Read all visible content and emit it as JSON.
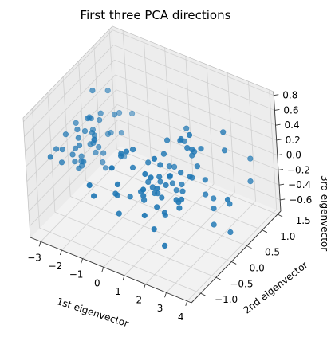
{
  "chart_data": {
    "type": "scatter",
    "projection": "3d",
    "title": "First three PCA directions",
    "xlabel": "1st eigenvector",
    "ylabel": "2nd eigenvector",
    "zlabel": "3rd eigenvector",
    "xlim": [
      -3.5,
      4.2
    ],
    "ylim": [
      -1.3,
      1.6
    ],
    "zlim": [
      -0.75,
      0.85
    ],
    "xticks": [
      -3,
      -2,
      -1,
      0,
      1,
      2,
      3,
      4
    ],
    "yticks": [
      -1.0,
      -0.5,
      0.0,
      0.5,
      1.0,
      1.5
    ],
    "zticks": [
      -0.6,
      -0.4,
      -0.2,
      0.0,
      0.2,
      0.4,
      0.6,
      0.8
    ],
    "xtick_labels": [
      "−3",
      "−2",
      "−1",
      "0",
      "1",
      "2",
      "3",
      "4"
    ],
    "ytick_labels": [
      "−1.0",
      "−0.5",
      "0.0",
      "0.5",
      "1.0",
      "1.5"
    ],
    "ztick_labels": [
      "−0.6",
      "−0.4",
      "−0.2",
      "0.0",
      "0.2",
      "0.4",
      "0.6",
      "0.8"
    ],
    "grid": true,
    "marker_color": "#1f77b4",
    "points": [
      [
        -2.68,
        0.32,
        -0.03
      ],
      [
        -2.71,
        -0.18,
        -0.21
      ],
      [
        -2.89,
        -0.14,
        0.02
      ],
      [
        -2.75,
        -0.32,
        0.03
      ],
      [
        -2.73,
        0.33,
        0.09
      ],
      [
        -2.28,
        0.74,
        0.17
      ],
      [
        -2.82,
        -0.09,
        0.26
      ],
      [
        -2.63,
        0.16,
        -0.02
      ],
      [
        -2.89,
        -0.58,
        0.02
      ],
      [
        -2.67,
        -0.11,
        -0.2
      ],
      [
        -2.51,
        0.65,
        -0.08
      ],
      [
        -2.61,
        0.01,
        0.22
      ],
      [
        -2.79,
        -0.24,
        -0.1
      ],
      [
        -3.23,
        -0.51,
        0.13
      ],
      [
        -2.64,
        1.18,
        -0.62
      ],
      [
        -2.38,
        1.34,
        -0.08
      ],
      [
        -2.62,
        0.81,
        -0.14
      ],
      [
        -2.65,
        0.31,
        -0.03
      ],
      [
        -2.2,
        0.87,
        -0.12
      ],
      [
        -2.59,
        0.51,
        0.25
      ],
      [
        -2.31,
        0.39,
        -0.4
      ],
      [
        -2.54,
        0.43,
        0.2
      ],
      [
        -3.22,
        0.13,
        0.21
      ],
      [
        -2.3,
        0.1,
        0.16
      ],
      [
        -2.36,
        -0.04,
        0.44
      ],
      [
        -2.51,
        -0.15,
        -0.11
      ],
      [
        -2.47,
        0.14,
        0.16
      ],
      [
        -2.56,
        0.37,
        -0.14
      ],
      [
        -2.64,
        0.32,
        -0.2
      ],
      [
        -2.63,
        -0.19,
        0.21
      ],
      [
        -2.59,
        -0.2,
        0.12
      ],
      [
        -2.41,
        0.41,
        -0.22
      ],
      [
        -2.65,
        0.81,
        0.42
      ],
      [
        -2.6,
        1.09,
        0.01
      ],
      [
        -2.68,
        -0.11,
        -0.14
      ],
      [
        -2.87,
        0.02,
        -0.15
      ],
      [
        -2.63,
        0.51,
        -0.41
      ],
      [
        -2.8,
        0.34,
        0.23
      ],
      [
        -2.98,
        -0.48,
        0.14
      ],
      [
        -2.59,
        0.23,
        -0.03
      ],
      [
        -2.77,
        0.27,
        0.28
      ],
      [
        -2.85,
        -0.94,
        0.25
      ],
      [
        -3.0,
        -0.34,
        0.28
      ],
      [
        -2.41,
        0.19,
        0.71
      ],
      [
        1.28,
        0.69,
        0.41
      ],
      [
        0.93,
        0.32,
        0.02
      ],
      [
        1.46,
        0.5,
        0.34
      ],
      [
        0.18,
        -0.83,
        0.18
      ],
      [
        1.09,
        0.07,
        0.31
      ],
      [
        0.64,
        -0.42,
        -0.04
      ],
      [
        1.1,
        0.28,
        -0.17
      ],
      [
        -0.75,
        -1.0,
        -0.01
      ],
      [
        1.04,
        0.23,
        0.42
      ],
      [
        -0.01,
        -0.72,
        -0.28
      ],
      [
        -0.51,
        -1.26,
        0.27
      ],
      [
        0.51,
        -0.1,
        -0.06
      ],
      [
        0.26,
        -0.55,
        0.51
      ],
      [
        0.98,
        -0.12,
        -0.15
      ],
      [
        -0.17,
        -0.25,
        -0.27
      ],
      [
        0.93,
        0.47,
        -0.05
      ],
      [
        0.66,
        -0.35,
        -0.18
      ],
      [
        0.23,
        -0.33,
        0.44
      ],
      [
        0.94,
        -0.54,
        -0.01
      ],
      [
        0.04,
        -0.58,
        0.47
      ],
      [
        1.12,
        -0.08,
        0.23
      ],
      [
        0.36,
        0.03,
        0.13
      ],
      [
        1.3,
        -0.33,
        0.04
      ],
      [
        0.92,
        -0.18,
        -0.13
      ],
      [
        0.71,
        0.15,
        -0.14
      ],
      [
        0.9,
        0.33,
        -0.13
      ],
      [
        1.33,
        0.24,
        -0.22
      ],
      [
        1.56,
        0.27,
        -0.13
      ],
      [
        0.81,
        -0.16,
        -0.07
      ],
      [
        -0.31,
        -0.37,
        0.31
      ],
      [
        -0.07,
        -0.7,
        -0.05
      ],
      [
        -0.19,
        -0.68,
        -0.05
      ],
      [
        0.14,
        -0.31,
        0.18
      ],
      [
        1.38,
        -0.42,
        -0.16
      ],
      [
        2.53,
        -0.01,
        0.76
      ],
      [
        1.41,
        -0.57,
        0.3
      ],
      [
        2.61,
        0.34,
        0.02
      ],
      [
        1.97,
        -0.18,
        -0.1
      ],
      [
        2.35,
        0.04,
        0.16
      ],
      [
        3.4,
        0.55,
        -0.3
      ],
      [
        0.52,
        -1.19,
        0.59
      ],
      [
        2.93,
        0.35,
        -0.33
      ],
      [
        2.32,
        -0.24,
        -0.03
      ],
      [
        2.92,
        0.78,
        0.51
      ],
      [
        1.66,
        0.24,
        0.48
      ],
      [
        1.8,
        -0.22,
        0.22
      ],
      [
        2.17,
        0.22,
        0.05
      ],
      [
        1.34,
        -0.78,
        0.22
      ],
      [
        1.59,
        -0.54,
        0.56
      ],
      [
        1.9,
        0.12,
        0.58
      ],
      [
        1.95,
        0.04,
        -0.08
      ],
      [
        3.49,
        1.17,
        -0.25
      ],
      [
        3.8,
        0.25,
        -0.07
      ],
      [
        1.3,
        -0.76,
        -0.14
      ],
      [
        2.43,
        0.38,
        0.4
      ],
      [
        1.2,
        -0.61,
        0.34
      ],
      [
        3.5,
        0.46,
        -0.63
      ],
      [
        1.39,
        -0.2,
        -0.33
      ],
      [
        2.28,
        0.33,
        0.17
      ],
      [
        2.61,
        0.56,
        -0.32
      ],
      [
        1.26,
        -0.18,
        -0.15
      ],
      [
        1.29,
        -0.12,
        -0.41
      ],
      [
        2.12,
        -0.21,
        -0.1
      ],
      [
        2.39,
        0.46,
        -0.25
      ],
      [
        2.84,
        0.38,
        -0.57
      ],
      [
        3.23,
        1.37,
        -0.06
      ],
      [
        2.16,
        -0.22,
        -0.17
      ],
      [
        1.44,
        -0.14,
        0.02
      ],
      [
        1.78,
        -0.5,
        -0.6
      ],
      [
        3.08,
        0.69,
        0.32
      ],
      [
        2.14,
        0.14,
        0.48
      ],
      [
        1.9,
        0.05,
        0.16
      ],
      [
        1.17,
        -0.16,
        0.11
      ],
      [
        2.11,
        0.37,
        0.33
      ],
      [
        2.31,
        0.18,
        0.46
      ],
      [
        1.92,
        0.41,
        0.24
      ],
      [
        1.42,
        -0.57,
        -0.39
      ]
    ]
  }
}
